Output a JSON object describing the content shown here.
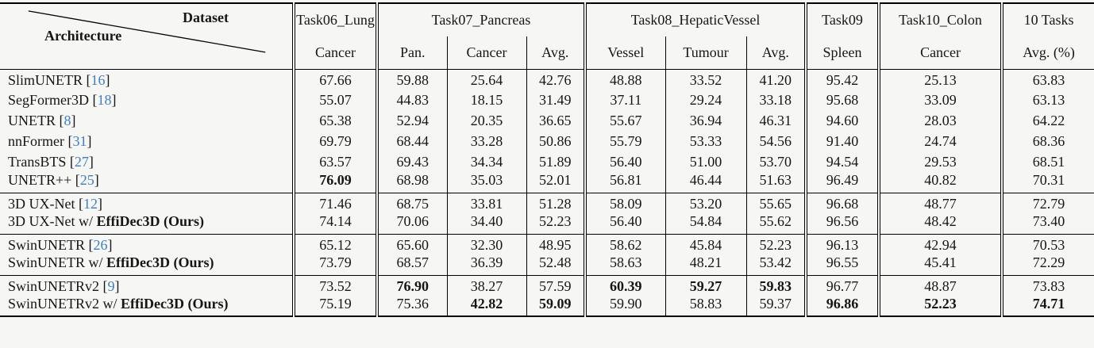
{
  "colors": {
    "citation": "#3e7fc1",
    "rule": "#000000",
    "text": "#161616",
    "background": "#f6f6f4"
  },
  "header": {
    "diagonal": {
      "top_right": "Dataset",
      "bottom_left": "Architecture"
    },
    "groups": [
      {
        "label": "Task06_Lung",
        "cols": [
          "Cancer"
        ]
      },
      {
        "label": "Task07_Pancreas",
        "cols": [
          "Pan.",
          "Cancer",
          "Avg."
        ]
      },
      {
        "label": "Task08_HepaticVessel",
        "cols": [
          "Vessel",
          "Tumour",
          "Avg."
        ]
      },
      {
        "label": "Task09",
        "cols": [
          "Spleen"
        ]
      },
      {
        "label": "Task10_Colon",
        "cols": [
          "Cancer"
        ]
      },
      {
        "label": "10 Tasks",
        "cols": [
          "Avg. (%)"
        ]
      }
    ]
  },
  "blocks": [
    {
      "rows": [
        {
          "pre": "SlimUNETR",
          "cite": "16",
          "v": [
            "67.66",
            "59.88",
            "25.64",
            "42.76",
            "48.88",
            "33.52",
            "41.20",
            "95.42",
            "25.13",
            "63.83"
          ],
          "bold": [
            0,
            0,
            0,
            0,
            0,
            0,
            0,
            0,
            0,
            0
          ]
        },
        {
          "pre": "SegFormer3D",
          "cite": "18",
          "v": [
            "55.07",
            "44.83",
            "18.15",
            "31.49",
            "37.11",
            "29.24",
            "33.18",
            "95.68",
            "33.09",
            "63.13"
          ],
          "bold": [
            0,
            0,
            0,
            0,
            0,
            0,
            0,
            0,
            0,
            0
          ]
        },
        {
          "pre": "UNETR",
          "cite": "8",
          "v": [
            "65.38",
            "52.94",
            "20.35",
            "36.65",
            "55.67",
            "36.94",
            "46.31",
            "94.60",
            "28.03",
            "64.22"
          ],
          "bold": [
            0,
            0,
            0,
            0,
            0,
            0,
            0,
            0,
            0,
            0
          ]
        },
        {
          "pre": "nnFormer",
          "cite": "31",
          "v": [
            "69.79",
            "68.44",
            "33.28",
            "50.86",
            "55.79",
            "53.33",
            "54.56",
            "91.40",
            "24.74",
            "68.36"
          ],
          "bold": [
            0,
            0,
            0,
            0,
            0,
            0,
            0,
            0,
            0,
            0
          ]
        },
        {
          "pre": "TransBTS",
          "cite": "27",
          "v": [
            "63.57",
            "69.43",
            "34.34",
            "51.89",
            "56.40",
            "51.00",
            "53.70",
            "94.54",
            "29.53",
            "68.51"
          ],
          "bold": [
            0,
            0,
            0,
            0,
            0,
            0,
            0,
            0,
            0,
            0
          ]
        },
        {
          "pre": "UNETR++",
          "cite": "25",
          "v": [
            "76.09",
            "68.98",
            "35.03",
            "52.01",
            "56.81",
            "46.44",
            "51.63",
            "96.49",
            "40.82",
            "70.31"
          ],
          "bold": [
            1,
            0,
            0,
            0,
            0,
            0,
            0,
            0,
            0,
            0
          ]
        }
      ]
    },
    {
      "rows": [
        {
          "pre": "3D UX-Net",
          "cite": "12",
          "v": [
            "71.46",
            "68.75",
            "33.81",
            "51.28",
            "58.09",
            "53.20",
            "55.65",
            "96.68",
            "48.77",
            "72.79"
          ],
          "bold": [
            0,
            0,
            0,
            0,
            0,
            0,
            0,
            0,
            0,
            0
          ]
        },
        {
          "pre": "3D UX-Net w/ ",
          "b": "EffiDec3D (Ours)",
          "v": [
            "74.14",
            "70.06",
            "34.40",
            "52.23",
            "56.40",
            "54.84",
            "55.62",
            "96.56",
            "48.42",
            "73.40"
          ],
          "bold": [
            0,
            0,
            0,
            0,
            0,
            0,
            0,
            0,
            0,
            0
          ]
        }
      ]
    },
    {
      "rows": [
        {
          "pre": "SwinUNETR",
          "cite": "26",
          "v": [
            "65.12",
            "65.60",
            "32.30",
            "48.95",
            "58.62",
            "45.84",
            "52.23",
            "96.13",
            "42.94",
            "70.53"
          ],
          "bold": [
            0,
            0,
            0,
            0,
            0,
            0,
            0,
            0,
            0,
            0
          ]
        },
        {
          "pre": "SwinUNETR w/ ",
          "b": "EffiDec3D (Ours)",
          "v": [
            "73.79",
            "68.57",
            "36.39",
            "52.48",
            "58.63",
            "48.21",
            "53.42",
            "96.55",
            "45.41",
            "72.29"
          ],
          "bold": [
            0,
            0,
            0,
            0,
            0,
            0,
            0,
            0,
            0,
            0
          ]
        }
      ]
    },
    {
      "rows": [
        {
          "pre": "SwinUNETRv2",
          "cite": "9",
          "v": [
            "73.52",
            "76.90",
            "38.27",
            "57.59",
            "60.39",
            "59.27",
            "59.83",
            "96.77",
            "48.87",
            "73.83"
          ],
          "bold": [
            0,
            1,
            0,
            0,
            1,
            1,
            1,
            0,
            0,
            0
          ]
        },
        {
          "pre": "SwinUNETRv2 w/ ",
          "b": "EffiDec3D (Ours)",
          "v": [
            "75.19",
            "75.36",
            "42.82",
            "59.09",
            "59.90",
            "58.83",
            "59.37",
            "96.86",
            "52.23",
            "74.71"
          ],
          "bold": [
            0,
            0,
            1,
            1,
            0,
            0,
            0,
            1,
            1,
            1
          ]
        }
      ]
    }
  ]
}
